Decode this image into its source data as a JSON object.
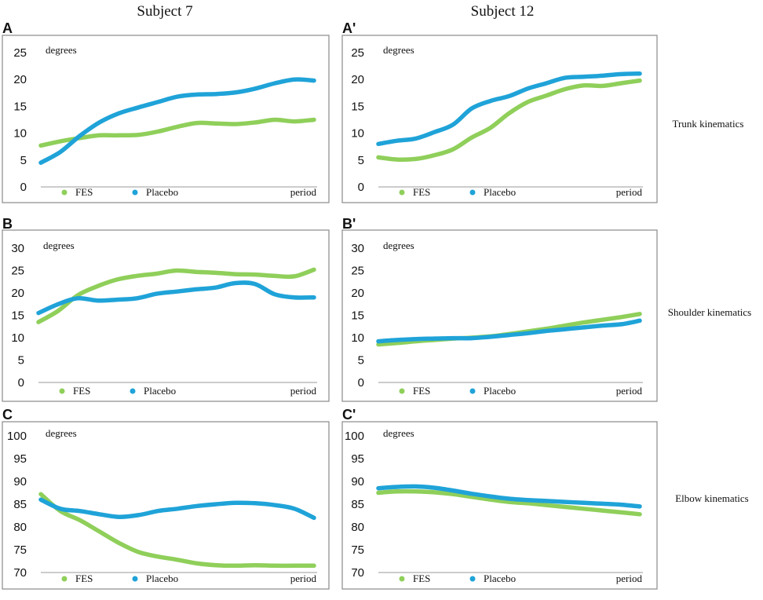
{
  "columns": [
    "Subject 7",
    "Subject 12"
  ],
  "row_labels": [
    "Trunk kinematics",
    "Shoulder kinematics",
    "Elbow kinematics"
  ],
  "colors": {
    "FES": "#8fcf5a",
    "Placebo": "#1fa3d8",
    "frame": "#8a8a8a"
  },
  "chart_data": [
    {
      "panel": "A",
      "type": "line",
      "title": "Subject 7",
      "row": "Trunk kinematics",
      "ylabel": "degrees",
      "xlabel": "period",
      "ylim": [
        0,
        25
      ],
      "yticks": [
        0,
        5,
        10,
        15,
        20,
        25
      ],
      "legend": [
        "FES",
        "Placebo"
      ],
      "series": [
        {
          "name": "FES",
          "values": [
            7.7,
            8.5,
            9.1,
            9.6,
            9.6,
            9.7,
            10.3,
            11.2,
            11.9,
            11.8,
            11.7,
            12.0,
            12.5,
            12.2,
            12.5
          ]
        },
        {
          "name": "Placebo",
          "values": [
            4.5,
            6.5,
            9.5,
            12.0,
            13.7,
            14.8,
            15.8,
            16.8,
            17.2,
            17.3,
            17.6,
            18.3,
            19.3,
            20.0,
            19.8
          ]
        }
      ]
    },
    {
      "panel": "A'",
      "type": "line",
      "title": "Subject 12",
      "row": "Trunk kinematics",
      "ylabel": "degrees",
      "xlabel": "period",
      "ylim": [
        0,
        25
      ],
      "yticks": [
        0,
        5,
        10,
        15,
        20,
        25
      ],
      "legend": [
        "FES",
        "Placebo"
      ],
      "series": [
        {
          "name": "FES",
          "values": [
            5.5,
            5.1,
            5.2,
            5.9,
            7.0,
            9.2,
            11.0,
            13.7,
            15.8,
            17.0,
            18.2,
            18.9,
            18.8,
            19.3,
            19.8
          ]
        },
        {
          "name": "Placebo",
          "values": [
            8.0,
            8.6,
            9.0,
            10.2,
            11.6,
            14.6,
            16.0,
            16.9,
            18.3,
            19.3,
            20.3,
            20.5,
            20.7,
            21.0,
            21.1
          ]
        }
      ]
    },
    {
      "panel": "B",
      "type": "line",
      "title": "Subject 7",
      "row": "Shoulder kinematics",
      "ylabel": "degrees",
      "xlabel": "period",
      "ylim": [
        0,
        30
      ],
      "yticks": [
        0,
        5,
        10,
        15,
        20,
        25,
        30
      ],
      "legend": [
        "FES",
        "Placebo"
      ],
      "series": [
        {
          "name": "FES",
          "values": [
            13.5,
            16.0,
            19.5,
            21.5,
            23.0,
            23.8,
            24.3,
            25.0,
            24.7,
            24.5,
            24.2,
            24.1,
            23.8,
            23.7,
            25.2
          ]
        },
        {
          "name": "Placebo",
          "values": [
            15.5,
            17.5,
            18.8,
            18.3,
            18.5,
            18.8,
            19.8,
            20.3,
            20.8,
            21.2,
            22.2,
            22.0,
            19.7,
            19.0,
            19.0
          ]
        }
      ]
    },
    {
      "panel": "B'",
      "type": "line",
      "title": "Subject 12",
      "row": "Shoulder kinematics",
      "ylabel": "degrees",
      "xlabel": "period",
      "ylim": [
        0,
        30
      ],
      "yticks": [
        0,
        5,
        10,
        15,
        20,
        25,
        30
      ],
      "legend": [
        "FES",
        "Placebo"
      ],
      "series": [
        {
          "name": "FES",
          "values": [
            8.5,
            8.8,
            9.2,
            9.5,
            9.8,
            10.0,
            10.3,
            10.8,
            11.4,
            12.0,
            12.7,
            13.4,
            14.0,
            14.6,
            15.3
          ]
        },
        {
          "name": "Placebo",
          "values": [
            9.2,
            9.5,
            9.7,
            9.8,
            9.9,
            9.9,
            10.2,
            10.6,
            11.0,
            11.5,
            11.9,
            12.3,
            12.7,
            13.0,
            13.8
          ]
        }
      ]
    },
    {
      "panel": "C",
      "type": "line",
      "title": "Subject 7",
      "row": "Elbow kinematics",
      "ylabel": "degrees",
      "xlabel": "period",
      "ylim": [
        70,
        100
      ],
      "yticks": [
        70,
        75,
        80,
        85,
        90,
        95,
        100
      ],
      "legend": [
        "FES",
        "Placebo"
      ],
      "series": [
        {
          "name": "FES",
          "values": [
            87.2,
            83.5,
            81.5,
            79.0,
            76.5,
            74.5,
            73.5,
            72.8,
            72.0,
            71.6,
            71.5,
            71.6,
            71.5,
            71.5,
            71.5
          ]
        },
        {
          "name": "Placebo",
          "values": [
            86.0,
            84.0,
            83.5,
            82.8,
            82.2,
            82.6,
            83.5,
            84.0,
            84.6,
            85.0,
            85.3,
            85.2,
            84.8,
            84.0,
            82.0
          ]
        }
      ]
    },
    {
      "panel": "C'",
      "type": "line",
      "title": "Subject 12",
      "row": "Elbow kinematics",
      "ylabel": "degrees",
      "xlabel": "period",
      "ylim": [
        70,
        100
      ],
      "yticks": [
        70,
        75,
        80,
        85,
        90,
        95,
        100
      ],
      "legend": [
        "FES",
        "Placebo"
      ],
      "series": [
        {
          "name": "FES",
          "values": [
            87.5,
            87.8,
            87.8,
            87.6,
            87.2,
            86.6,
            86.0,
            85.5,
            85.2,
            84.8,
            84.4,
            84.0,
            83.6,
            83.2,
            82.8
          ]
        },
        {
          "name": "Placebo",
          "values": [
            88.5,
            88.8,
            88.9,
            88.6,
            88.0,
            87.3,
            86.7,
            86.2,
            85.9,
            85.7,
            85.5,
            85.3,
            85.1,
            84.9,
            84.5
          ]
        }
      ]
    }
  ]
}
